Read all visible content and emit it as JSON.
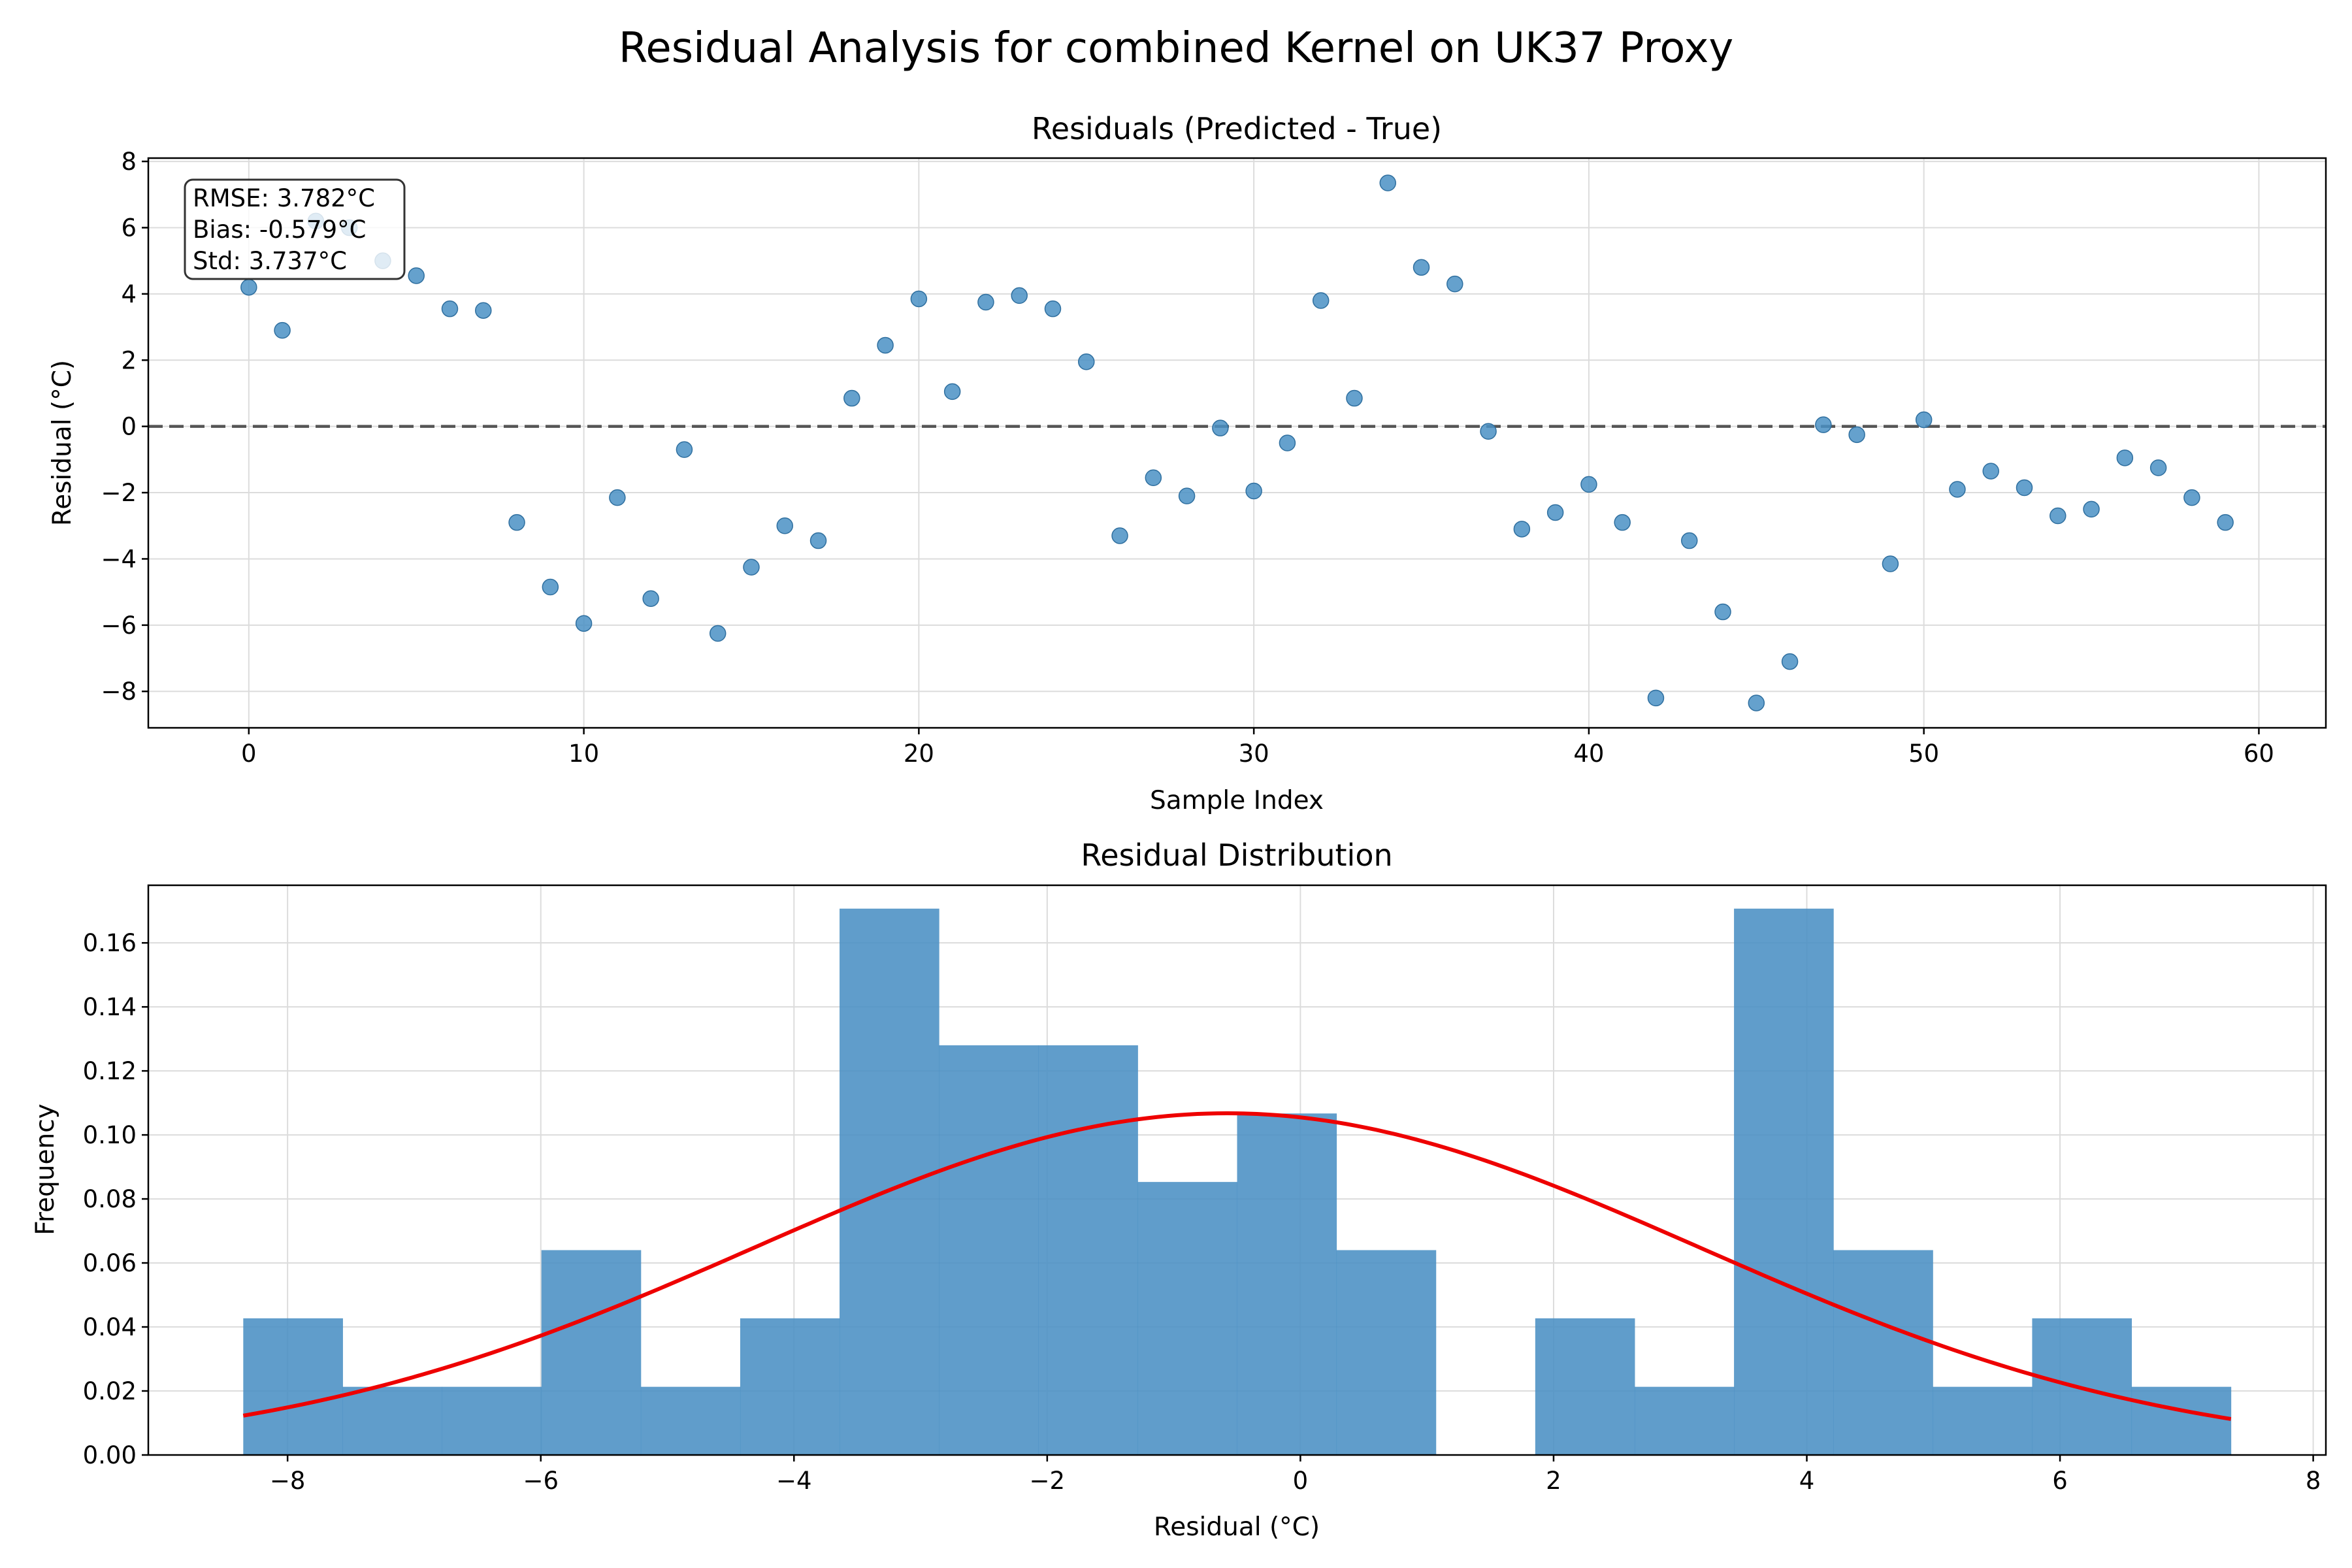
{
  "figure": {
    "title": "Residual Analysis for combined Kernel on UK37 Proxy"
  },
  "chart_data": [
    {
      "type": "scatter",
      "title": "Residuals (Predicted - True)",
      "xlabel": "Sample Index",
      "ylabel": "Residual (°C)",
      "xlim": [
        -3,
        62
      ],
      "ylim": [
        -9.1,
        8.1
      ],
      "x_ticks": [
        0,
        10,
        20,
        30,
        40,
        50,
        60
      ],
      "y_ticks": [
        -8,
        -6,
        -4,
        -2,
        0,
        2,
        4,
        6,
        8
      ],
      "grid": true,
      "marker_color": "#4a90c4",
      "reference_line": {
        "y": 0,
        "style": "dashed",
        "color": "#555555"
      },
      "x": [
        0,
        1,
        2,
        3,
        4,
        5,
        6,
        7,
        8,
        9,
        10,
        11,
        12,
        13,
        14,
        15,
        16,
        17,
        18,
        19,
        20,
        21,
        22,
        23,
        24,
        25,
        26,
        27,
        28,
        29,
        30,
        31,
        32,
        33,
        34,
        35,
        36,
        37,
        38,
        39,
        40,
        41,
        42,
        43,
        44,
        45,
        46,
        47,
        48,
        49,
        50,
        51,
        52,
        53,
        54,
        55,
        56,
        57,
        58,
        59
      ],
      "y": [
        4.2,
        2.9,
        6.2,
        6.0,
        5.0,
        4.55,
        3.55,
        3.5,
        -2.9,
        -4.85,
        -5.95,
        -2.15,
        -5.2,
        -0.7,
        -6.25,
        -4.25,
        -3.0,
        -3.45,
        0.85,
        2.45,
        3.85,
        1.05,
        3.75,
        3.95,
        3.55,
        1.95,
        -3.3,
        -1.55,
        -2.1,
        -0.05,
        -1.95,
        -0.5,
        3.8,
        0.85,
        7.35,
        4.8,
        4.3,
        -0.15,
        -3.1,
        -2.6,
        -1.75,
        -2.9,
        -8.2,
        -3.45,
        -5.6,
        -8.35,
        -7.1,
        0.05,
        -0.25,
        -4.15,
        0.2,
        -1.9,
        -1.35,
        -1.85,
        -2.7,
        -2.5,
        -0.95,
        -1.25,
        -2.15,
        -2.9
      ],
      "stats": {
        "rmse": "RMSE: 3.782°C",
        "bias": "Bias: -0.579°C",
        "std": "Std: 3.737°C"
      }
    },
    {
      "type": "histogram",
      "title": "Residual Distribution",
      "xlabel": "Residual (°C)",
      "ylabel": "Frequency",
      "xlim": [
        -9.1,
        8.1
      ],
      "ylim": [
        0,
        0.178
      ],
      "x_ticks": [
        -8,
        -6,
        -4,
        -2,
        0,
        2,
        4,
        6,
        8
      ],
      "y_ticks": [
        0.0,
        0.02,
        0.04,
        0.06,
        0.08,
        0.1,
        0.12,
        0.14,
        0.16
      ],
      "grid": true,
      "bar_color": "#4a90c4",
      "bins": {
        "start": -8.35,
        "width": 0.785,
        "densities": [
          0.0427,
          0.0213,
          0.0213,
          0.064,
          0.0213,
          0.0427,
          0.1707,
          0.128,
          0.128,
          0.0853,
          0.1067,
          0.064,
          0.0,
          0.0427,
          0.0213,
          0.1707,
          0.064,
          0.0213,
          0.0427,
          0.0213
        ]
      },
      "normal_curve": {
        "mean": -0.579,
        "std": 3.737,
        "color": "#ee0000"
      }
    }
  ]
}
